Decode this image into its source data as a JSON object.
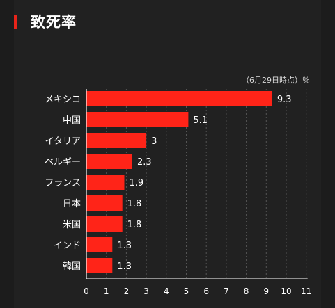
{
  "header": {
    "title": "致死率"
  },
  "chart_data": {
    "type": "bar",
    "orientation": "horizontal",
    "title": "致死率",
    "note": "（6月29日時点）％",
    "categories": [
      "メキシコ",
      "中国",
      "イタリア",
      "ベルギー",
      "フランス",
      "日本",
      "米国",
      "インド",
      "韓国"
    ],
    "values": [
      9.3,
      5.1,
      3,
      2.3,
      1.9,
      1.8,
      1.8,
      1.3,
      1.3
    ],
    "data_labels": [
      "9.3",
      "5.1",
      "3",
      "2.3",
      "1.9",
      "1.8",
      "1.8",
      "1.3",
      "1.3"
    ],
    "x_ticks": [
      0,
      1,
      2,
      3,
      4,
      5,
      6,
      7,
      8,
      9,
      10,
      11
    ],
    "xlim": [
      0,
      11
    ],
    "grid": "vertical dashed",
    "legend": "none",
    "colors": {
      "bar": "#ff2418",
      "accent": "#e8241a",
      "grid": "#555555"
    }
  }
}
